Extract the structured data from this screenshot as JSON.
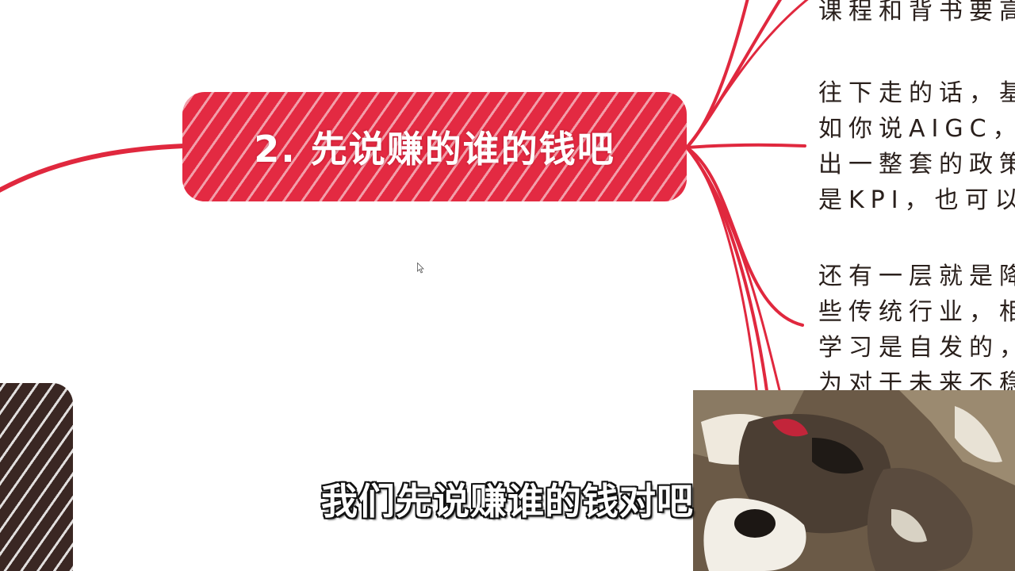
{
  "mindmap": {
    "topic": {
      "label": "2. 先说赚的谁的钱吧",
      "color": "#e32a42"
    },
    "connector_color": "#e0283e",
    "branches": [
      {
        "lines": [
          "课程和背书要高"
        ]
      },
      {
        "lines": [
          "往下走的话，基",
          "如你说AIGC，他",
          "出一整套的政策",
          "是KPI，也可以"
        ]
      },
      {
        "lines": [
          "还有一层就是降",
          "些传统行业，相",
          "学习是自发的，",
          "为对于未来不稳"
        ]
      }
    ]
  },
  "subtitle": {
    "text": "我们先说赚谁的钱对吧"
  },
  "icons": {
    "cursor": "mouse-pointer-icon"
  }
}
